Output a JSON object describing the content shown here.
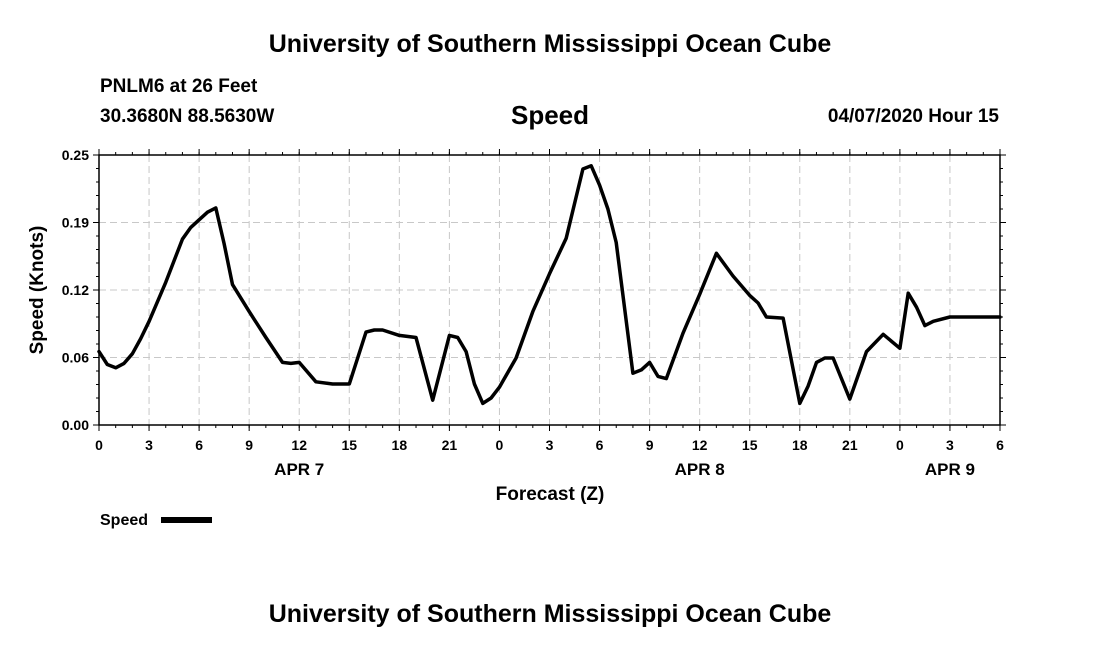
{
  "header": {
    "title": "University of Southern Mississippi Ocean Cube",
    "station": "PNLM6 at 26 Feet",
    "coords": "30.3680N 88.5630W",
    "variable": "Speed",
    "datetime": "04/07/2020 Hour 15"
  },
  "footer": {
    "title": "University of Southern Mississippi Ocean Cube"
  },
  "chart_data": {
    "type": "line",
    "title": "Speed",
    "xlabel": "Forecast (Z)",
    "ylabel": "Speed (Knots)",
    "ylim": [
      0,
      0.25
    ],
    "yticks": [
      "0.00",
      "0.06",
      "0.12",
      "0.19",
      "0.25"
    ],
    "xlim": [
      0,
      54
    ],
    "xticks": [
      "0",
      "3",
      "6",
      "9",
      "12",
      "15",
      "18",
      "21",
      "0",
      "3",
      "6",
      "9",
      "12",
      "15",
      "18",
      "21",
      "0",
      "3",
      "6"
    ],
    "day_labels": [
      {
        "label": "APR 7",
        "at": 12
      },
      {
        "label": "APR 8",
        "at": 36
      },
      {
        "label": "APR 9",
        "at": 51
      }
    ],
    "grid": true,
    "legend": {
      "label": "Speed",
      "placement": "bottom-left",
      "color": "#000000"
    },
    "series": [
      {
        "name": "Speed",
        "color": "#000000",
        "x": [
          0,
          0.5,
          1,
          1.5,
          2,
          2.5,
          3,
          4,
          5,
          5.5,
          6,
          6.5,
          7,
          7.5,
          8,
          9,
          10,
          11,
          11.5,
          12,
          13,
          14,
          15,
          16,
          16.5,
          17,
          18,
          19,
          20,
          21,
          21.5,
          22,
          22.5,
          23,
          23.5,
          24,
          25,
          26,
          27,
          28,
          29,
          29.5,
          30,
          30.5,
          31,
          32,
          32.5,
          33,
          33.5,
          34,
          35,
          36,
          37,
          38,
          39,
          39.5,
          40,
          41,
          42,
          42.5,
          43,
          43.5,
          44,
          45,
          46,
          47,
          48,
          48.5,
          49,
          49.5,
          50,
          51,
          52,
          53,
          54
        ],
        "y": [
          0.068,
          0.056,
          0.053,
          0.057,
          0.066,
          0.08,
          0.096,
          0.132,
          0.172,
          0.183,
          0.19,
          0.197,
          0.201,
          0.168,
          0.13,
          0.105,
          0.081,
          0.058,
          0.057,
          0.058,
          0.04,
          0.038,
          0.038,
          0.086,
          0.088,
          0.088,
          0.083,
          0.081,
          0.023,
          0.083,
          0.081,
          0.068,
          0.038,
          0.02,
          0.025,
          0.035,
          0.062,
          0.105,
          0.14,
          0.173,
          0.237,
          0.24,
          0.222,
          0.2,
          0.169,
          0.048,
          0.051,
          0.058,
          0.045,
          0.043,
          0.085,
          0.121,
          0.159,
          0.138,
          0.12,
          0.113,
          0.1,
          0.099,
          0.02,
          0.036,
          0.058,
          0.062,
          0.062,
          0.024,
          0.068,
          0.084,
          0.071,
          0.122,
          0.109,
          0.092,
          0.096,
          0.1,
          0.1,
          0.1,
          0.1
        ]
      }
    ]
  }
}
